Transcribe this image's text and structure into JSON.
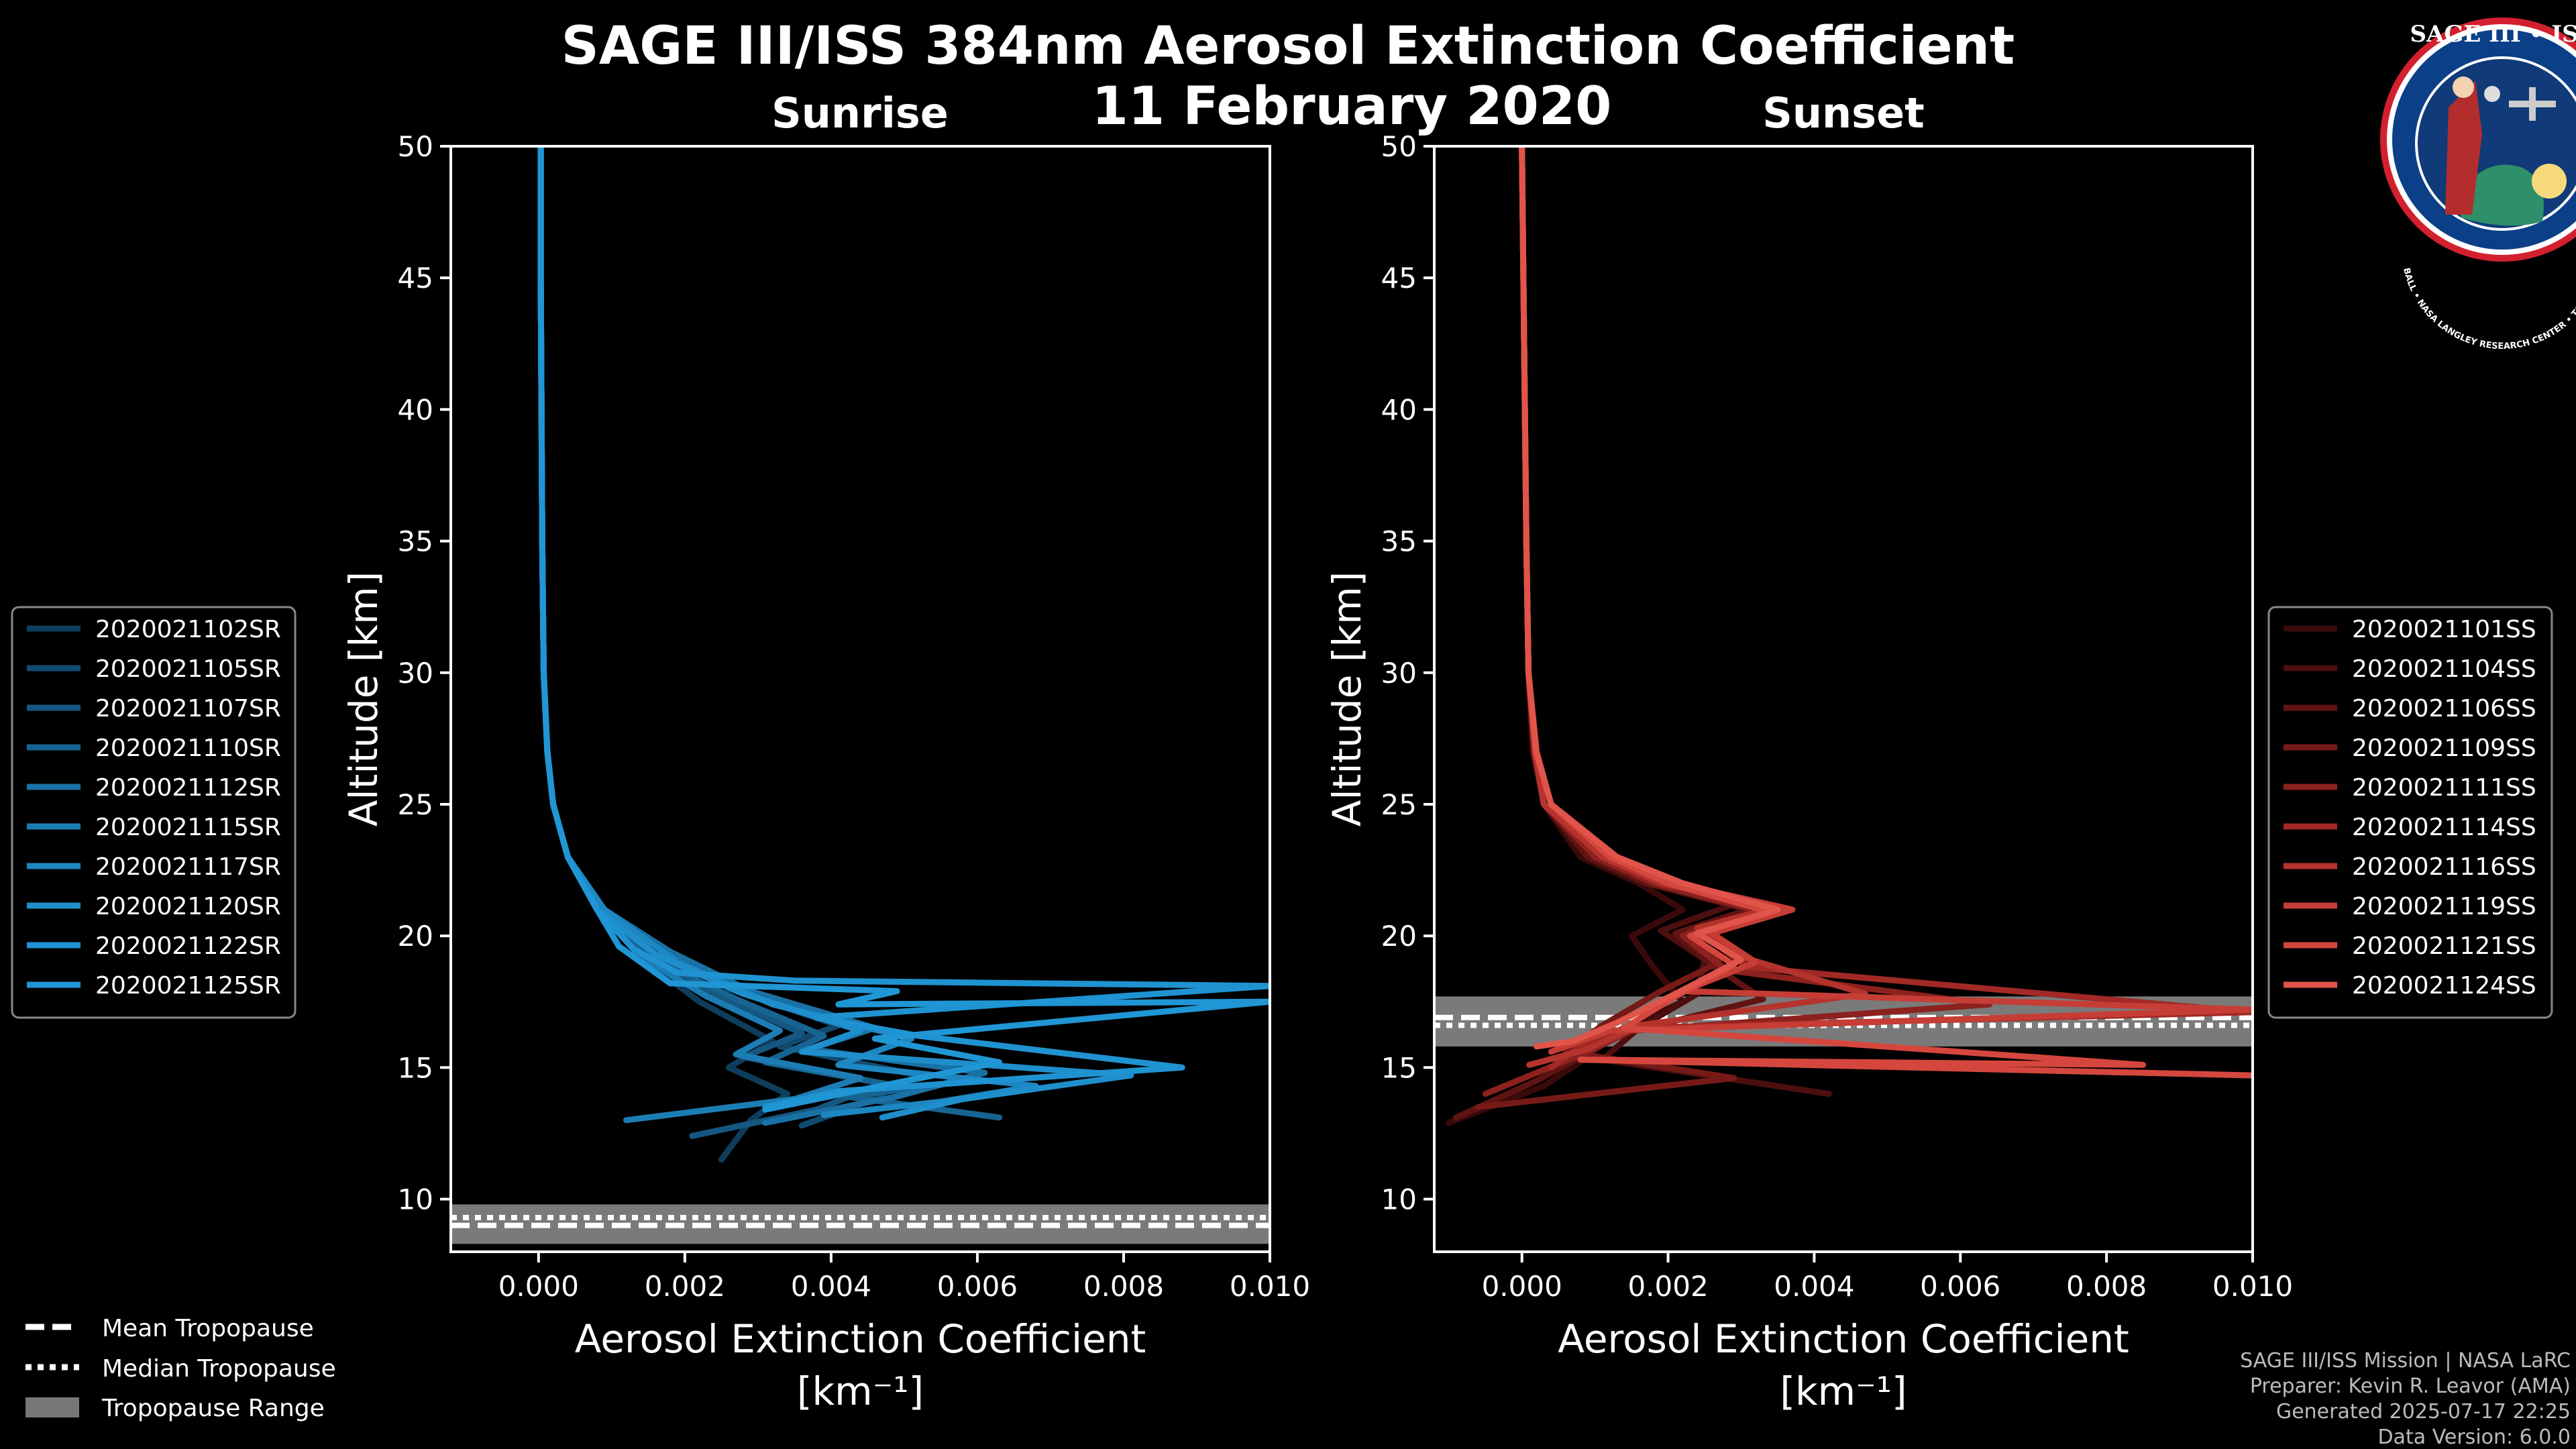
{
  "figure": {
    "title_line1": "SAGE III/ISS 384nm Aerosol Extinction Coefficient",
    "title_line2": "11 February 2020",
    "credits": [
      "SAGE III/ISS Mission | NASA LaRC",
      "Preparer: Kevin R. Leavor (AMA)",
      "Generated 2025-07-17 22:25",
      "Data Version: 6.0.0"
    ],
    "logo": {
      "top_text": "SAGE III • ISS",
      "ring_text": "BALL • NASA LANGLEY RESEARCH CENTER • TAS-I • ESA",
      "colors": {
        "ring": "#0b3f87",
        "rim": "#d2202f",
        "space": "#103a78"
      }
    },
    "tropopause_legend": {
      "mean": "Mean Tropopause",
      "median": "Median Tropopause",
      "range": "Tropopause Range"
    }
  },
  "chart_data": [
    {
      "type": "line",
      "title": "Sunrise",
      "xlabel": "Aerosol Extinction Coefficient",
      "xunit": "[km⁻¹]",
      "ylabel": "Altitude [km]",
      "xlim": [
        -0.0012,
        0.01
      ],
      "ylim": [
        8,
        50
      ],
      "xticks": [
        "0.000",
        "0.002",
        "0.004",
        "0.006",
        "0.008",
        "0.010"
      ],
      "yticks": [
        "10",
        "15",
        "20",
        "25",
        "30",
        "35",
        "40",
        "45",
        "50"
      ],
      "legend_position": "left",
      "base_color": "#1f8fd0",
      "tropopause": {
        "mean": 9.0,
        "median": 9.3,
        "range": [
          8.3,
          9.8
        ]
      },
      "series": [
        {
          "name": "2020021102SR",
          "color": "#0f3d5c",
          "x": [
            3e-05,
            3e-05,
            4e-05,
            5e-05,
            7e-05,
            0.00012,
            0.0002,
            0.0004,
            0.0008,
            0.0014,
            0.0022,
            0.0032,
            0.0026,
            0.0034,
            0.0029,
            0.0025
          ],
          "y": [
            50,
            45,
            40,
            35,
            30,
            27,
            25,
            23,
            21,
            19.2,
            17.5,
            16,
            15,
            14,
            13,
            11.5
          ]
        },
        {
          "name": "2020021105SR",
          "color": "#124a6f",
          "x": [
            3e-05,
            3e-05,
            4e-05,
            5e-05,
            7e-05,
            0.00012,
            0.0002,
            0.0004,
            0.0009,
            0.0017,
            0.0026,
            0.0041,
            0.0033,
            0.0052,
            0.0044,
            0.0036
          ],
          "y": [
            50,
            45,
            40,
            35,
            30,
            27,
            25,
            23,
            21,
            19.5,
            18,
            16.6,
            15.8,
            14.7,
            13.6,
            12.8
          ]
        },
        {
          "name": "2020021107SR",
          "color": "#155781",
          "x": [
            3e-05,
            3e-05,
            4e-05,
            5e-05,
            7e-05,
            0.00012,
            0.0002,
            0.0004,
            0.0008,
            0.0015,
            0.0024,
            0.0036,
            0.0028,
            0.0047,
            0.0038,
            0.0021
          ],
          "y": [
            50,
            45,
            40,
            35,
            30,
            27,
            25,
            23,
            21,
            19.3,
            17.8,
            16.3,
            15.4,
            14.4,
            13.4,
            12.4
          ]
        },
        {
          "name": "2020021110SR",
          "color": "#176493",
          "x": [
            3e-05,
            3e-05,
            4e-05,
            5e-05,
            7e-05,
            0.00012,
            0.0002,
            0.0004,
            0.0008,
            0.0016,
            0.0027,
            0.0039,
            0.0031,
            0.0051,
            0.0042,
            0.0063
          ],
          "y": [
            50,
            45,
            40,
            35,
            30,
            27,
            25,
            23,
            21,
            19.1,
            17.6,
            16.2,
            15.2,
            14.2,
            13.9,
            13.1
          ]
        },
        {
          "name": "2020021112SR",
          "color": "#1a71a5",
          "x": [
            3e-05,
            3e-05,
            4e-05,
            5e-05,
            7e-05,
            0.00012,
            0.0002,
            0.0004,
            0.0009,
            0.0018,
            0.0029,
            0.0046,
            0.0037,
            0.0061,
            0.0049,
            0.0031
          ],
          "y": [
            50,
            45,
            40,
            35,
            30,
            27,
            25,
            23,
            21,
            19.4,
            17.9,
            16.5,
            15.7,
            14.8,
            13.9,
            12.9
          ]
        },
        {
          "name": "2020021115SR",
          "color": "#1c7db5",
          "x": [
            3e-05,
            3e-05,
            4e-05,
            5e-05,
            7e-05,
            0.00012,
            0.0002,
            0.0004,
            0.0008,
            0.0014,
            0.0023,
            0.0033,
            0.0027,
            0.0044,
            0.0035,
            0.0012
          ],
          "y": [
            50,
            45,
            40,
            35,
            30,
            27,
            25,
            23,
            21,
            19.2,
            17.7,
            16.4,
            15.5,
            14.6,
            13.8,
            13.0
          ]
        },
        {
          "name": "2020021117SR",
          "color": "#1d87c2",
          "x": [
            3e-05,
            3e-05,
            4e-05,
            5e-05,
            7e-05,
            0.00012,
            0.0002,
            0.0004,
            0.0009,
            0.0019,
            0.0032,
            0.0051,
            0.0041,
            0.0068,
            0.0055,
            0.0039
          ],
          "y": [
            50,
            45,
            40,
            35,
            30,
            27,
            25,
            23,
            21,
            19.0,
            17.4,
            16.1,
            15.1,
            14.3,
            13.7,
            13.2
          ]
        },
        {
          "name": "2020021120SR",
          "color": "#1e8fcb",
          "x": [
            3e-05,
            3e-05,
            4e-05,
            5e-05,
            7e-05,
            0.00012,
            0.0002,
            0.0004,
            0.0008,
            0.0016,
            0.0028,
            0.0044,
            0.0036,
            0.0081,
            0.0058,
            0.0047
          ],
          "y": [
            50,
            45,
            40,
            35,
            30,
            27,
            25,
            23,
            21,
            19.3,
            17.8,
            16.4,
            15.6,
            14.7,
            13.8,
            13.1
          ]
        },
        {
          "name": "2020021122SR",
          "color": "#1f93d1",
          "x": [
            3e-05,
            3e-05,
            4e-05,
            5e-05,
            7e-05,
            0.00012,
            0.0002,
            0.0004,
            0.0008,
            0.0013,
            0.0019,
            0.0035,
            0.01,
            0.0038,
            0.0052,
            0.0088,
            0.0041,
            0.0031
          ],
          "y": [
            50,
            45,
            40,
            35,
            30,
            27,
            25,
            23,
            21,
            19.5,
            18.6,
            18.3,
            18.1,
            16.9,
            16.2,
            15.0,
            14.1,
            13.5
          ]
        },
        {
          "name": "2020021125SR",
          "color": "#2096d5",
          "x": [
            3e-05,
            3e-05,
            4e-05,
            5e-05,
            7e-05,
            0.00012,
            0.0002,
            0.0004,
            0.0008,
            0.0011,
            0.0018,
            0.0049,
            0.0041,
            0.01,
            0.0046,
            0.0063,
            0.0045,
            0.0031
          ],
          "y": [
            50,
            45,
            40,
            35,
            30,
            27,
            25,
            23,
            21,
            19.6,
            18.2,
            17.9,
            17.4,
            17.5,
            16.1,
            15.2,
            14.2,
            13.4
          ]
        }
      ]
    },
    {
      "type": "line",
      "title": "Sunset",
      "xlabel": "Aerosol Extinction Coefficient",
      "xunit": "[km⁻¹]",
      "ylabel": "Altitude [km]",
      "xlim": [
        -0.0012,
        0.01
      ],
      "ylim": [
        8,
        50
      ],
      "xticks": [
        "0.000",
        "0.002",
        "0.004",
        "0.006",
        "0.008",
        "0.010"
      ],
      "yticks": [
        "10",
        "15",
        "20",
        "25",
        "30",
        "35",
        "40",
        "45",
        "50"
      ],
      "legend_position": "right",
      "base_color": "#e0544a",
      "tropopause": {
        "mean": 16.9,
        "median": 16.6,
        "range": [
          15.8,
          17.7
        ]
      },
      "series": [
        {
          "name": "2020021101SS",
          "color": "#3a0a0a",
          "x": [
            0.0,
            2e-05,
            4e-05,
            6e-05,
            9e-05,
            0.00015,
            0.0003,
            0.0008,
            0.0016,
            0.0022,
            0.0015,
            0.0018,
            0.0022,
            0.0012,
            0.0009,
            0.0003,
            -0.001
          ],
          "y": [
            50,
            45,
            40,
            35,
            30,
            27,
            25,
            23,
            22,
            21,
            20,
            18.8,
            17.5,
            16.2,
            15.4,
            14.3,
            12.9
          ]
        },
        {
          "name": "2020021104SS",
          "color": "#4c0e0e",
          "x": [
            0.0,
            2e-05,
            4e-05,
            6e-05,
            9e-05,
            0.00016,
            0.0003,
            0.0009,
            0.0018,
            0.0029,
            0.0019,
            0.0025,
            0.0024,
            0.0016,
            0.0011,
            0.0042
          ],
          "y": [
            50,
            45,
            40,
            35,
            30,
            27,
            25,
            23,
            22,
            21.2,
            20.2,
            19.1,
            17.8,
            16.5,
            15.3,
            14.0
          ]
        },
        {
          "name": "2020021106SS",
          "color": "#601313",
          "x": [
            0.0,
            2e-05,
            4e-05,
            6e-05,
            9e-05,
            0.00016,
            0.0003,
            0.0009,
            0.0017,
            0.0031,
            0.0021,
            0.0026,
            0.0033,
            0.0014,
            0.0008,
            0.0002,
            -0.0009
          ],
          "y": [
            50,
            45,
            40,
            35,
            30,
            27,
            25,
            23,
            22,
            21,
            20.1,
            18.9,
            17.6,
            16.3,
            15.4,
            14.5,
            13.1
          ]
        },
        {
          "name": "2020021109SS",
          "color": "#761a18",
          "x": [
            0.0,
            2e-05,
            4e-05,
            6e-05,
            9e-05,
            0.00017,
            0.0003,
            0.001,
            0.0019,
            0.0034,
            0.0023,
            0.0027,
            0.0019,
            0.0011,
            0.0006,
            0.0029,
            -0.0006
          ],
          "y": [
            50,
            45,
            40,
            35,
            30,
            27,
            25,
            23,
            22,
            21.1,
            20.2,
            19.0,
            17.9,
            16.6,
            15.6,
            14.6,
            13.5
          ]
        },
        {
          "name": "2020021111SS",
          "color": "#8c211e",
          "x": [
            0.0,
            2e-05,
            4e-05,
            6e-05,
            9e-05,
            0.00017,
            0.0003,
            0.001,
            0.0018,
            0.0033,
            0.0022,
            0.0028,
            0.0064,
            0.0015,
            0.0009,
            0.0002,
            -0.0005
          ],
          "y": [
            50,
            45,
            40,
            35,
            30,
            27,
            25,
            23,
            22,
            20.9,
            20.0,
            18.7,
            17.4,
            16.4,
            15.6,
            14.8,
            14.0
          ]
        },
        {
          "name": "2020021114SS",
          "color": "#a22925",
          "x": [
            0.0,
            2e-05,
            4e-05,
            6e-05,
            9e-05,
            0.00018,
            0.0003,
            0.0011,
            0.002,
            0.0036,
            0.0025,
            0.0031,
            0.01,
            0.0014,
            0.0008,
            0.0004
          ],
          "y": [
            50,
            45,
            40,
            35,
            30,
            27,
            25,
            23,
            22,
            21.0,
            20.0,
            18.8,
            17.1,
            16.5,
            15.8,
            15.0
          ]
        },
        {
          "name": "2020021116SS",
          "color": "#b5332d",
          "x": [
            0.0,
            2e-05,
            4e-05,
            6e-05,
            9e-05,
            0.00018,
            0.0003,
            0.0011,
            0.0019,
            0.0035,
            0.0024,
            0.003,
            0.0047,
            0.0016,
            0.0009,
            0.0001
          ],
          "y": [
            50,
            45,
            40,
            35,
            30,
            27,
            25,
            23,
            22,
            21.1,
            20.3,
            19.2,
            17.8,
            16.6,
            15.7,
            15.1
          ]
        },
        {
          "name": "2020021119SS",
          "color": "#c63d35",
          "x": [
            0.0,
            2e-05,
            4e-05,
            6e-05,
            9e-05,
            0.00019,
            0.0004,
            0.0012,
            0.0021,
            0.0037,
            0.0026,
            0.0032,
            0.0022,
            0.01,
            0.0012,
            0.0004
          ],
          "y": [
            50,
            45,
            40,
            35,
            30,
            27,
            25,
            23,
            22,
            21.0,
            20.1,
            19.0,
            17.9,
            17.2,
            16.4,
            15.6
          ]
        },
        {
          "name": "2020021121SS",
          "color": "#d5473e",
          "x": [
            0.0,
            2e-05,
            4e-05,
            6e-05,
            9e-05,
            0.00019,
            0.0004,
            0.0012,
            0.002,
            0.0034,
            0.0023,
            0.0029,
            0.0021,
            0.0014,
            0.0085,
            0.0008,
            0.01
          ],
          "y": [
            50,
            45,
            40,
            35,
            30,
            27,
            25,
            23,
            22,
            20.9,
            20.0,
            18.9,
            17.7,
            16.5,
            15.1,
            15.3,
            14.7
          ]
        },
        {
          "name": "2020021124SS",
          "color": "#e0544a",
          "x": [
            0.0,
            2e-05,
            4e-05,
            6e-05,
            9e-05,
            0.0002,
            0.0004,
            0.0013,
            0.0022,
            0.0035,
            0.0024,
            0.003,
            0.0021,
            0.0013,
            0.0007,
            0.0002
          ],
          "y": [
            50,
            45,
            40,
            35,
            30,
            27,
            25,
            23,
            22,
            21.0,
            20.1,
            19.1,
            17.8,
            16.7,
            16.0,
            15.8
          ]
        }
      ]
    }
  ]
}
